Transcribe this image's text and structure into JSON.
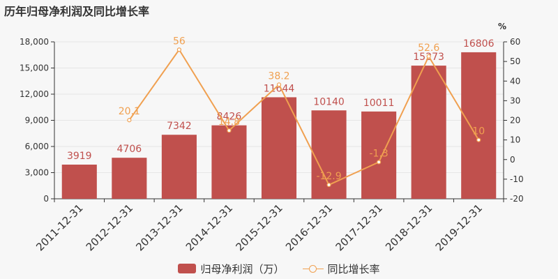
{
  "title": "历年归母净利润及同比增长率",
  "chart_data": {
    "type": "bar",
    "categories": [
      "2011-12-31",
      "2012-12-31",
      "2013-12-31",
      "2014-12-31",
      "2015-12-31",
      "2016-12-31",
      "2017-12-31",
      "2018-12-31",
      "2019-12-31"
    ],
    "series": [
      {
        "name": "归母净利润（万）",
        "type": "bar",
        "axis": "left",
        "color": "#c0504d",
        "values": [
          3919,
          4706,
          7342,
          8426,
          11644,
          10140,
          10011,
          15273,
          16806
        ]
      },
      {
        "name": "同比增长率",
        "type": "line",
        "axis": "right",
        "color": "#f0a050",
        "values": [
          null,
          20.1,
          56,
          14.8,
          38.2,
          -12.9,
          -1.3,
          52.6,
          10
        ]
      }
    ],
    "ylim_left": [
      0,
      18000
    ],
    "yticks_left": [
      "0",
      "3,000",
      "6,000",
      "9,000",
      "12,000",
      "15,000",
      "18,000"
    ],
    "ylim_right": [
      -20,
      60
    ],
    "yticks_right": [
      "-20",
      "-10",
      "0",
      "10",
      "20",
      "30",
      "40",
      "50",
      "60"
    ],
    "y2_unit": "%",
    "grid": true,
    "legend": "bottom"
  }
}
